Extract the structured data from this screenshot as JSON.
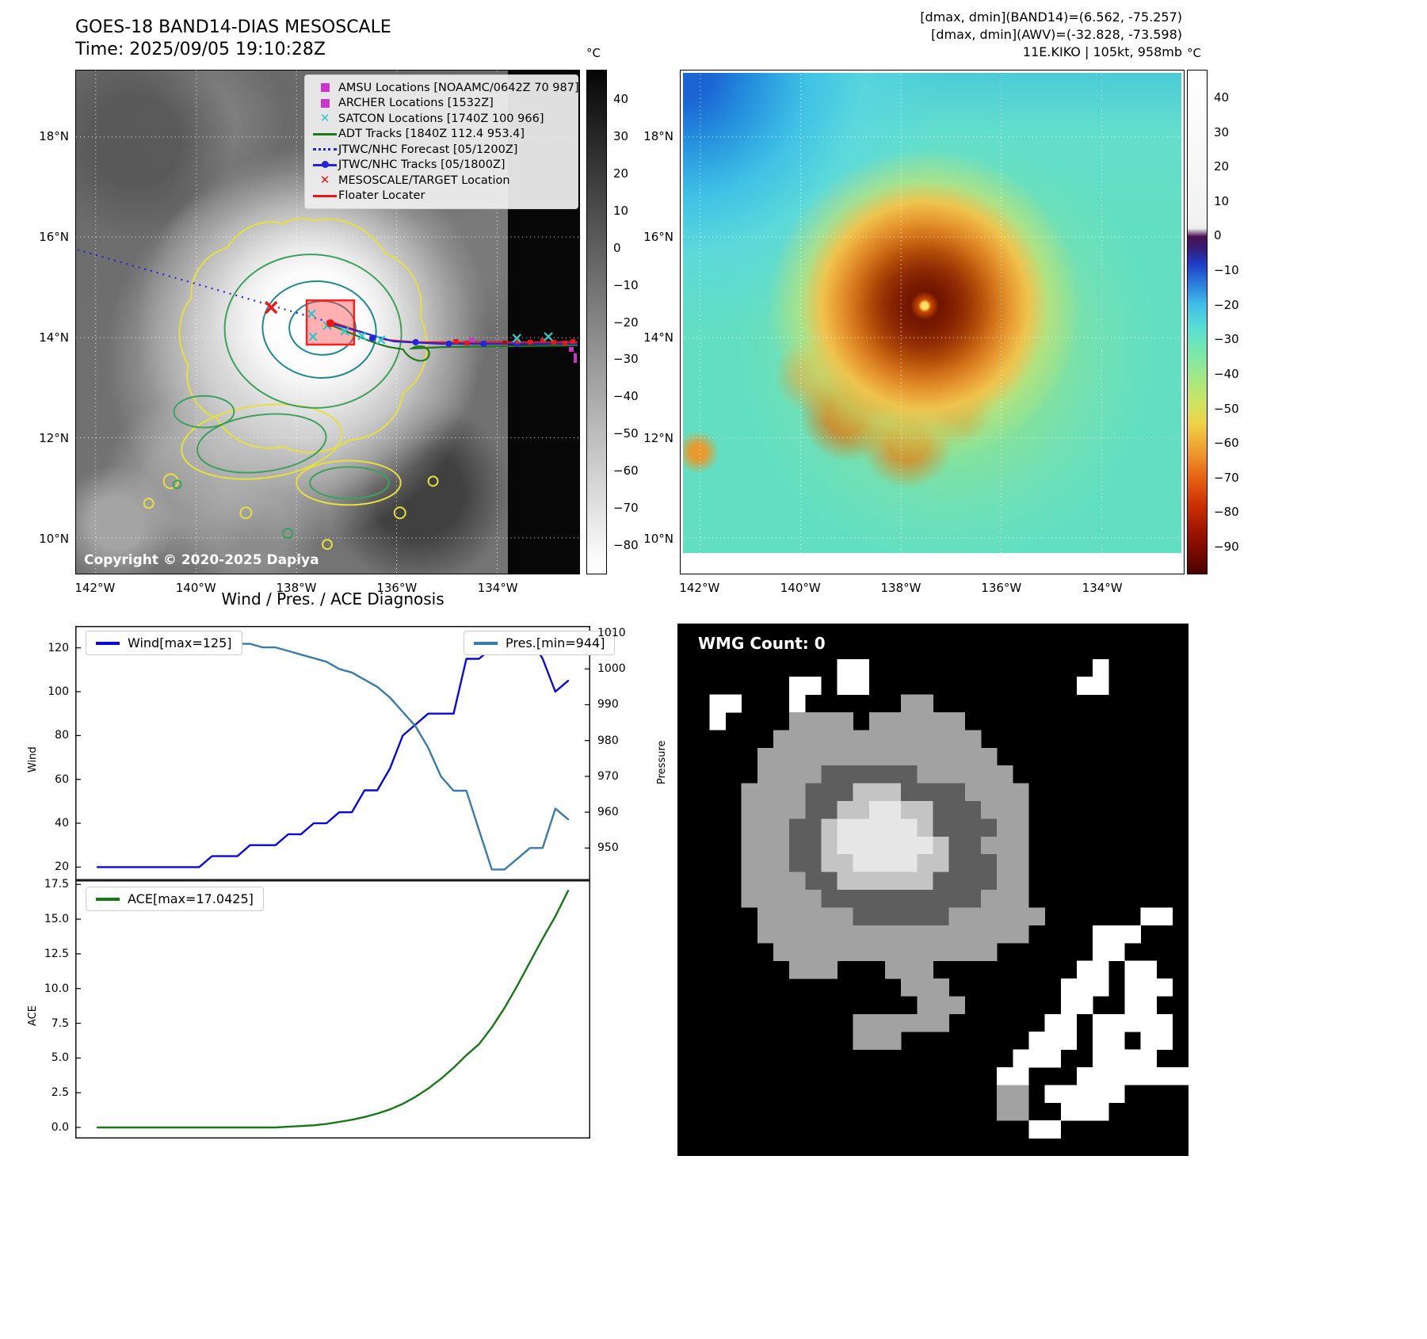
{
  "page": {
    "left_title_1": "GOES-18 BAND14-DIAS MESOSCALE",
    "left_title_2": "Time: 2025/09/05 19:10:28Z",
    "right_header_1": "[dmax, dmin](BAND14)=(6.562, -75.257)",
    "right_header_2": "[dmax, dmin](AWV)=(-32.828, -73.598)",
    "right_header_3": "11E.KIKO | 105kt, 958mb"
  },
  "left_map": {
    "copyright": "Copyright © 2020-2025 Dapiya",
    "lat_ticks": [
      "18°N",
      "16°N",
      "14°N",
      "12°N",
      "10°N"
    ],
    "lon_ticks": [
      "142°W",
      "140°W",
      "138°W",
      "136°W",
      "134°W"
    ],
    "legend_items": [
      {
        "label": "AMSU Locations [NOAAMC/0642Z 70 987]",
        "marker": "square",
        "color": "#cc35cc"
      },
      {
        "label": "ARCHER Locations [1532Z]",
        "marker": "square",
        "color": "#cc35cc"
      },
      {
        "label": "SATCON Locations [1740Z 100 966]",
        "marker": "x",
        "color": "#2ec8c8"
      },
      {
        "label": "ADT Tracks [1840Z 112.4 953.4]",
        "marker": "line",
        "color": "#1e7a1e"
      },
      {
        "label": "JTWC/NHC Forecast [05/1200Z]",
        "marker": "dotted",
        "color": "#2424dd"
      },
      {
        "label": "JTWC/NHC Tracks [05/1800Z]",
        "marker": "line-dot",
        "color": "#2424dd"
      },
      {
        "label": "MESOSCALE/TARGET Location",
        "marker": "x",
        "color": "#ee1515"
      },
      {
        "label": "Floater Locater",
        "marker": "line",
        "color": "#ee1515"
      }
    ],
    "colorbar": {
      "unit": "°C",
      "ticks": [
        40,
        30,
        20,
        10,
        0,
        -10,
        -20,
        -30,
        -40,
        -50,
        -60,
        -70,
        -80
      ]
    }
  },
  "right_map": {
    "lat_ticks": [
      "18°N",
      "16°N",
      "14°N",
      "12°N",
      "10°N"
    ],
    "lon_ticks": [
      "142°W",
      "140°W",
      "138°W",
      "136°W",
      "134°W"
    ],
    "colorbar": {
      "unit": "°C",
      "ticks": [
        40,
        30,
        20,
        10,
        0,
        -10,
        -20,
        -30,
        -40,
        -50,
        -60,
        -70,
        -80,
        -90
      ]
    }
  },
  "diagnosis": {
    "title": "Wind / Pres. / ACE Diagnosis"
  },
  "chart_data": [
    {
      "type": "line",
      "title": "Wind / Pres. / ACE Diagnosis",
      "series": [
        {
          "name": "Wind[max=125]",
          "color": "#0808dd",
          "axis": "left",
          "values": [
            20,
            20,
            20,
            20,
            20,
            20,
            20,
            20,
            20,
            25,
            25,
            25,
            30,
            30,
            30,
            35,
            35,
            40,
            40,
            45,
            45,
            55,
            55,
            65,
            80,
            85,
            90,
            90,
            90,
            115,
            115,
            120,
            125,
            125,
            125,
            115,
            100,
            105
          ]
        },
        {
          "name": "Pres.[min=944]",
          "color": "#3a7ca8",
          "axis": "right",
          "values": [
            1009,
            1009,
            1009,
            1009,
            1009,
            1009,
            1009,
            1009,
            1009,
            1008,
            1008,
            1007,
            1007,
            1006,
            1006,
            1005,
            1004,
            1003,
            1002,
            1000,
            999,
            997,
            995,
            992,
            988,
            984,
            978,
            970,
            966,
            966,
            955,
            944,
            944,
            947,
            950,
            950,
            961,
            958
          ]
        }
      ],
      "ylabel_left": "Wind",
      "ylabel_right": "Pressure",
      "yticks_left": [
        120,
        100,
        80,
        60,
        40,
        20
      ],
      "yticks_right": [
        1010,
        1000,
        990,
        980,
        970,
        960,
        950
      ],
      "ylim_left": [
        14,
        130
      ],
      "ylim_right": [
        941,
        1012
      ],
      "legend_position": "upper-left-and-upper-right",
      "grid": false
    },
    {
      "type": "line",
      "series": [
        {
          "name": "ACE[max=17.0425]",
          "color": "#187818",
          "axis": "left",
          "values": [
            0,
            0,
            0,
            0,
            0,
            0,
            0,
            0,
            0,
            0,
            0,
            0,
            0,
            0,
            0,
            0.05,
            0.1,
            0.15,
            0.25,
            0.4,
            0.55,
            0.75,
            1.0,
            1.3,
            1.7,
            2.2,
            2.8,
            3.5,
            4.3,
            5.2,
            6.0,
            7.2,
            8.6,
            10.2,
            11.9,
            13.6,
            15.2,
            17.0425
          ]
        }
      ],
      "ylabel_left": "ACE",
      "yticks_left": [
        "17.5",
        "15.0",
        "12.5",
        "10.0",
        "7.5",
        "5.0",
        "2.5",
        "0.0"
      ],
      "ylim_left": [
        -0.8,
        17.8
      ],
      "legend_position": "upper-left",
      "grid": false
    }
  ],
  "wmg": {
    "label": "WMG Count: 0",
    "palette": {
      "k": "#000000",
      "w": "#ffffff",
      "g": "#a2a2a2",
      "d": "#5e5e5e",
      "l": "#c4c4c4",
      "e": "#e6e6e6"
    },
    "grid": [
      "kkkkkkkkkkkkkkkkkkkkkkkkkkkkkkkk",
      "kkkkkkkkkkkkkkkkkkkkkkkkkkkkkkkk",
      "kkkkkkkkkkwwkkkkkkkkkkkkkkwkkkkk",
      "kkkkkkkwwkwwkkkkkkkkkkkkkwwkkkkk",
      "kkwwkkkwkkkkkkggkkkkkkkkkkkkkkkk",
      "kkwkkkkggggkggggggkkkkkkkkkkkkkk",
      "kkkkkkgggggggggggggkkkkkkkkkkkkk",
      "kkkkkgggggggggggggggkkkkkkkkkkkk",
      "kkkkkggggddddddggggggkkkkkkkkkkk",
      "kkkkggggdddlllddddggggkkkkkkkkkk",
      "kkkkggggddlleelldddgggkkkkkkkkkk",
      "kkkkgggddleeeeelddddggkkkkkkkkkk",
      "kkkkgggddleeeeeelddgggkkkkkkkkkk",
      "kkkkgggddlleeeelldddggkkkkkkkkkk",
      "kkkkggggddllllllddddggkkkkkkkkkk",
      "kkkkgggggddddddddddgggkkkkkkkkkk",
      "kkkkkggggggddddddggggggkkkkkkwwk",
      "kkkkkgggggggggggggggggkkkkwwwkkk",
      "kkkkkkggggggggggggggkkkkkkwwkkkk",
      "kkkkkkkgggkkkgggkkkkkkkkkwwkwwkk",
      "kkkkkkkkkkkkkkgggkkkkkkkwwwkwwwk",
      "kkkkkkkkkkkkkkkgggkkkkkkwwkkwwkk",
      "kkkkkkkkkkkggggggkkkkkkwwkwwwwwk",
      "kkkkkkkkkkkgggkkkkkkkkwwwkwwkwwk",
      "kkkkkkkkkkkkkkkkkkkkkwwwkkwwwwkk",
      "kkkkkkkkkkkkkkkkkkkkwwkkkwwwwwww",
      "kkkkkkkkkkkkkkkkkkkkggkwwwwwkkkk",
      "kkkkkkkkkkkkkkkkkkkkggkkwwwkkkkk",
      "kkkkkkkkkkkkkkkkkkkkkkwwkkkkkkkk",
      "kkkkkkkkkkkkkkkkkkkkkkkkkkkkkkkk"
    ]
  }
}
